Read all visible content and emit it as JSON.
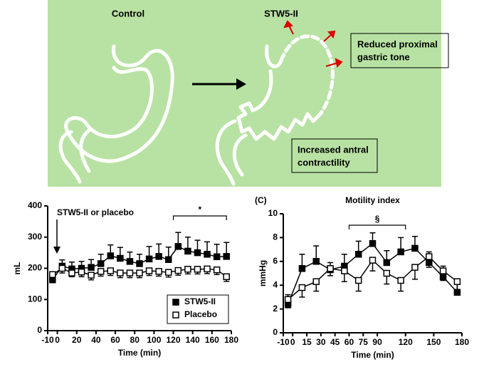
{
  "diagram": {
    "left_label": "Control",
    "right_label": "STW5-II",
    "box_top": [
      "Reduced proximal",
      "gastric tone"
    ],
    "box_bottom": [
      "Increased antral",
      "contractility"
    ]
  },
  "chart_data": [
    {
      "type": "line",
      "y_label": "mL",
      "x_label": "Time (min)",
      "x": [
        -5,
        5,
        15,
        25,
        35,
        45,
        55,
        65,
        75,
        85,
        95,
        105,
        115,
        125,
        135,
        145,
        155,
        165,
        175
      ],
      "series": [
        {
          "name": "STW5-II",
          "color": "#000000",
          "marker_fill": true,
          "error_direction": "up",
          "values": [
            163,
            207,
            198,
            200,
            203,
            215,
            240,
            232,
            222,
            215,
            230,
            238,
            228,
            270,
            255,
            250,
            245,
            237,
            238
          ],
          "errors": [
            15,
            20,
            22,
            22,
            25,
            30,
            35,
            35,
            30,
            30,
            40,
            40,
            40,
            45,
            45,
            40,
            40,
            40,
            45
          ]
        },
        {
          "name": "Placebo",
          "color": "#000000",
          "marker_fill": false,
          "error_direction": "down",
          "values": [
            180,
            200,
            185,
            188,
            178,
            190,
            192,
            185,
            185,
            185,
            192,
            190,
            187,
            193,
            197,
            197,
            198,
            195,
            173
          ],
          "errors": [
            15,
            15,
            12,
            15,
            15,
            15,
            15,
            15,
            15,
            15,
            15,
            15,
            15,
            15,
            15,
            15,
            15,
            15,
            15
          ]
        }
      ],
      "xlim": [
        -10,
        180
      ],
      "xticks": [
        -10,
        0,
        20,
        40,
        60,
        80,
        100,
        120,
        140,
        160,
        180
      ],
      "ylim": [
        0,
        400
      ],
      "yticks": [
        0,
        100,
        200,
        300,
        400
      ],
      "legend": "lower right",
      "annotations": [
        {
          "text": "STW5-II or placebo"
        },
        {
          "text": "*",
          "x_range": [
            120,
            175
          ]
        }
      ]
    },
    {
      "type": "line",
      "panel_label": "(C)",
      "title": "Motility index",
      "y_label": "mmHg",
      "x_label": "Time (min)",
      "x": [
        -5,
        10,
        25,
        40,
        55,
        70,
        85,
        100,
        115,
        130,
        145,
        160,
        175
      ],
      "series": [
        {
          "color": "#000000",
          "marker_fill": true,
          "error_direction": "up",
          "values": [
            2.4,
            5.4,
            6.0,
            5.3,
            5.6,
            6.6,
            7.5,
            5.9,
            6.8,
            7.1,
            5.9,
            4.7,
            3.4
          ],
          "errors": [
            0.8,
            1.2,
            1.3,
            0.6,
            1.0,
            1.1,
            0.9,
            1.0,
            1.2,
            1.0,
            0.9,
            0.9,
            0.8
          ]
        },
        {
          "color": "#000000",
          "marker_fill": false,
          "error_direction": "down",
          "values": [
            2.8,
            3.8,
            4.3,
            5.4,
            5.2,
            4.4,
            6.1,
            5.0,
            4.4,
            5.5,
            6.4,
            5.2,
            4.3
          ],
          "errors": [
            0.7,
            0.8,
            0.8,
            0.6,
            0.9,
            0.9,
            0.9,
            0.9,
            0.9,
            1.0,
            0.9,
            0.8,
            0.9
          ]
        }
      ],
      "xlim": [
        -10,
        180
      ],
      "xticks": [
        -10,
        0,
        15,
        30,
        45,
        60,
        75,
        90,
        120,
        150,
        180
      ],
      "ylim": [
        0,
        10
      ],
      "yticks": [
        0,
        2,
        4,
        6,
        8,
        10
      ],
      "annotations": [
        {
          "text": "§",
          "x_range": [
            60,
            120
          ]
        }
      ]
    }
  ]
}
